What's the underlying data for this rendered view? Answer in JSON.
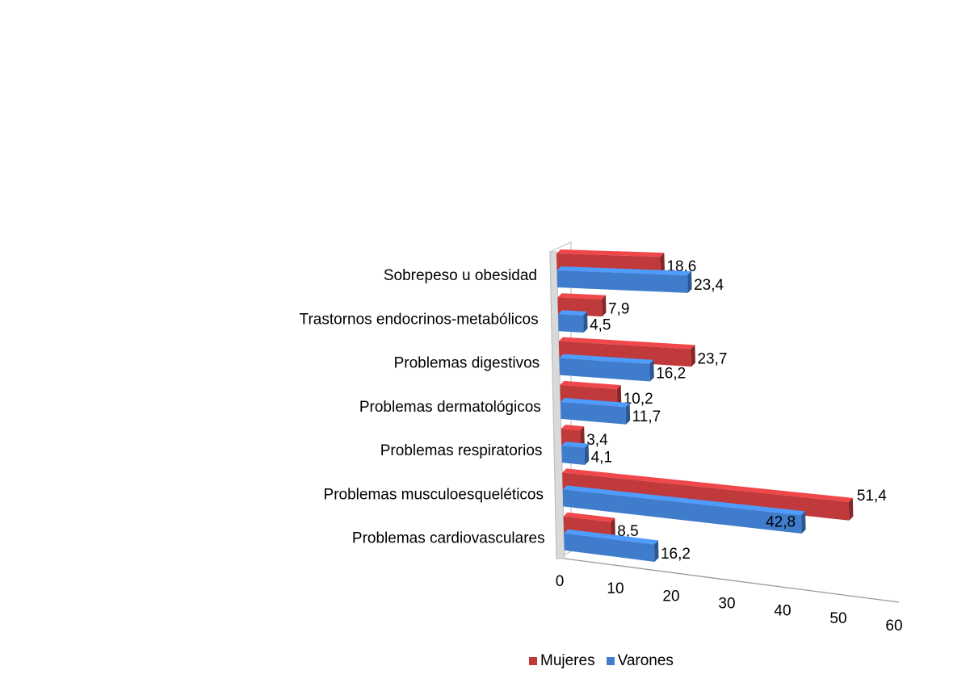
{
  "chart_data": {
    "type": "bar",
    "orientation": "horizontal",
    "style": "3d",
    "title": "",
    "xlabel": "",
    "ylabel": "",
    "categories": [
      "Sobrepeso u obesidad",
      "Trastornos endocrinos-metabólicos",
      "Problemas digestivos",
      "Problemas dermatológicos",
      "Problemas respiratorios",
      "Problemas musculoesqueléticos",
      "Problemas cardiovasculares"
    ],
    "series": [
      {
        "name": "Mujeres",
        "color": "#c0393b",
        "values": [
          18.6,
          7.9,
          23.7,
          10.2,
          3.4,
          51.4,
          8.5
        ],
        "labels": [
          "18,6",
          "7,9",
          "23,7",
          "10,2",
          "3,4",
          "51,4",
          "8,5"
        ]
      },
      {
        "name": "Varones",
        "color": "#3f7dcc",
        "values": [
          23.4,
          4.5,
          16.2,
          11.7,
          4.1,
          42.8,
          16.2
        ],
        "labels": [
          "23,4",
          "4,5",
          "16,2",
          "11,7",
          "4,1",
          "42,8",
          "16,2"
        ]
      }
    ],
    "xlim": [
      0,
      60
    ],
    "x_ticks": [
      "0",
      "10",
      "20",
      "30",
      "40",
      "50",
      "60"
    ],
    "grid": false,
    "legend_position": "bottom"
  }
}
